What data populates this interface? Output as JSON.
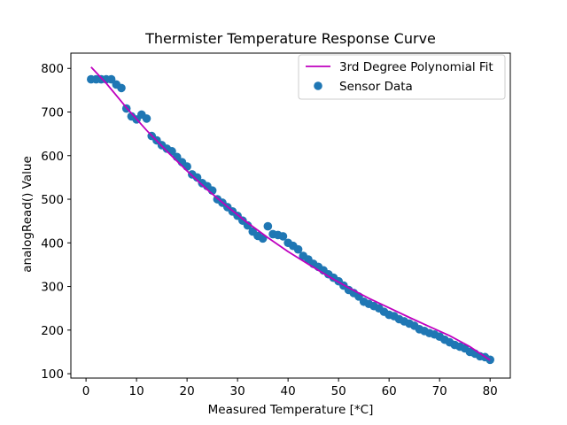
{
  "chart_data": {
    "type": "scatter",
    "title": "Thermister Temperature Response Curve",
    "xlabel": "Measured Temperature [*C]",
    "ylabel": "analogRead() Value",
    "xlim": [
      -3.0,
      84.0
    ],
    "ylim": [
      90,
      835
    ],
    "xticks": [
      0,
      10,
      20,
      30,
      40,
      50,
      60,
      70,
      80
    ],
    "yticks": [
      100,
      200,
      300,
      400,
      500,
      600,
      700,
      800
    ],
    "grid": false,
    "legend_position": "upper right",
    "colors": {
      "fit": "#bf00bf",
      "data": "#1f77b4"
    },
    "series": [
      {
        "name": "3rd Degree Polynomial Fit",
        "type": "line",
        "x": [
          1,
          4,
          8,
          12,
          16,
          20,
          24,
          28,
          32,
          36,
          40,
          44,
          48,
          52,
          56,
          60,
          64,
          68,
          72,
          76,
          80
        ],
        "y": [
          803,
          766,
          710,
          658,
          610,
          565,
          522,
          483,
          446,
          412,
          380,
          351,
          323,
          297,
          273,
          251,
          229,
          208,
          187,
          162,
          131
        ]
      },
      {
        "name": "Sensor Data",
        "type": "scatter",
        "x": [
          1,
          2,
          3,
          4,
          5,
          6,
          7,
          8,
          9,
          10,
          11,
          12,
          13,
          14,
          15,
          16,
          17,
          18,
          19,
          20,
          21,
          22,
          23,
          24,
          25,
          26,
          27,
          28,
          29,
          30,
          31,
          32,
          33,
          34,
          35,
          36,
          37,
          38,
          39,
          40,
          41,
          42,
          43,
          44,
          45,
          46,
          47,
          48,
          49,
          50,
          51,
          52,
          53,
          54,
          55,
          56,
          57,
          58,
          59,
          60,
          61,
          62,
          63,
          64,
          65,
          66,
          67,
          68,
          69,
          70,
          71,
          72,
          73,
          74,
          75,
          76,
          77,
          78,
          79,
          80
        ],
        "y": [
          775,
          775,
          775,
          775,
          775,
          763,
          755,
          708,
          690,
          683,
          694,
          685,
          645,
          635,
          624,
          616,
          610,
          597,
          585,
          575,
          557,
          550,
          537,
          530,
          520,
          500,
          492,
          482,
          472,
          462,
          451,
          440,
          426,
          416,
          410,
          438,
          420,
          418,
          415,
          400,
          393,
          385,
          370,
          362,
          352,
          345,
          337,
          328,
          320,
          312,
          302,
          292,
          285,
          277,
          265,
          260,
          255,
          250,
          242,
          235,
          232,
          225,
          220,
          215,
          210,
          202,
          198,
          193,
          190,
          185,
          178,
          172,
          166,
          162,
          158,
          150,
          146,
          140,
          138,
          132
        ]
      }
    ]
  }
}
